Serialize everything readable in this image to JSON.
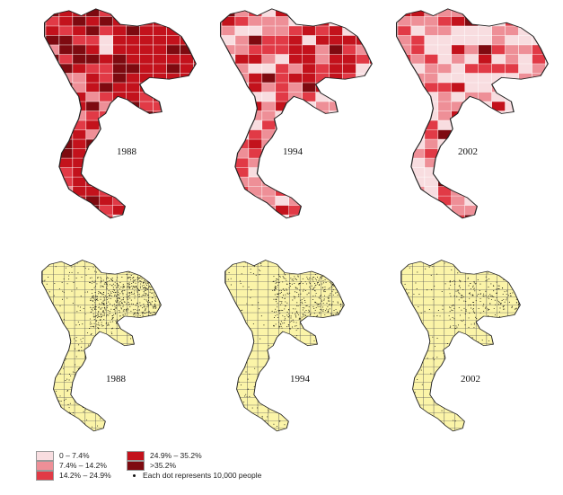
{
  "maps": [
    {
      "year": "1988",
      "kind": "choropleth",
      "palette": "dark"
    },
    {
      "year": "1994",
      "kind": "choropleth",
      "palette": "mixed"
    },
    {
      "year": "2002",
      "kind": "choropleth",
      "palette": "light"
    },
    {
      "year": "1988",
      "kind": "dot-density",
      "dot_density": "high"
    },
    {
      "year": "1994",
      "kind": "dot-density",
      "dot_density": "medium"
    },
    {
      "year": "2002",
      "kind": "dot-density",
      "dot_density": "low"
    }
  ],
  "legend": {
    "classes": [
      {
        "label": "0 – 7.4%",
        "color": "#f8dde0"
      },
      {
        "label": "7.4% – 14.2%",
        "color": "#ee8f97"
      },
      {
        "label": "14.2% – 24.9%",
        "color": "#e13a46"
      },
      {
        "label": "24.9% – 35.2%",
        "color": "#c3121c"
      },
      {
        "label": ">35.2%",
        "color": "#7e0a10"
      }
    ],
    "dot_label": "Each dot represents 10,000 people"
  },
  "colors": {
    "land_fill": "#fbf4a8",
    "outline": "#222222",
    "background": "#ffffff"
  }
}
